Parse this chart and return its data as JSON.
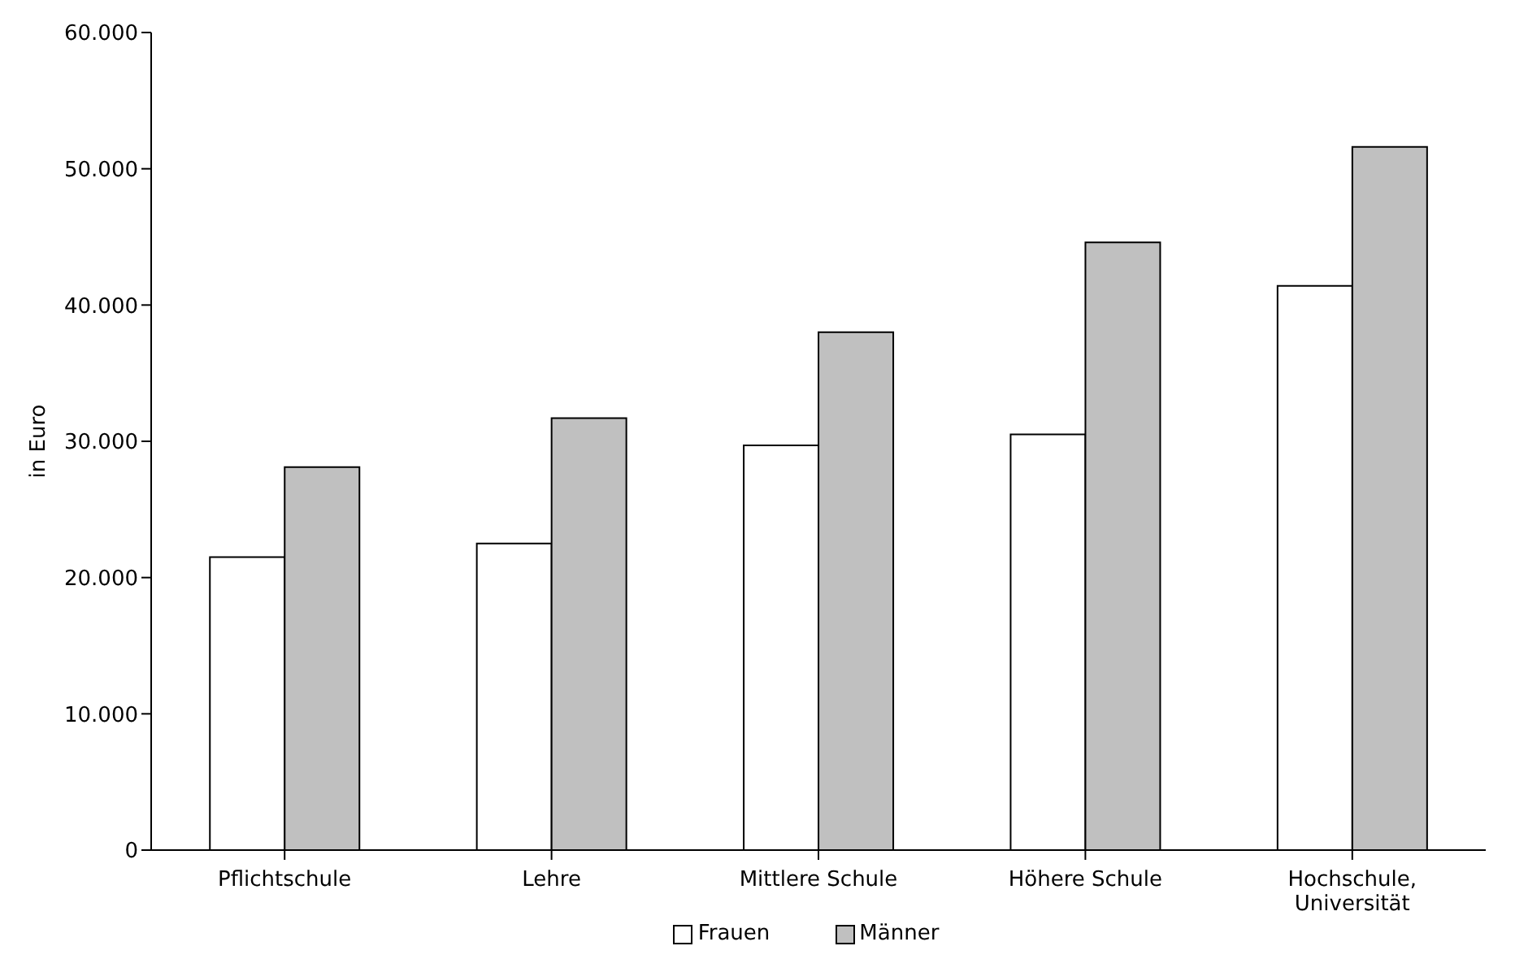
{
  "chart_data": {
    "type": "bar",
    "ylabel": "in Euro",
    "categories": [
      "Pflichtschule",
      "Lehre",
      "Mittlere Schule",
      "Höhere Schule",
      "Hochschule, Universität"
    ],
    "series": [
      {
        "name": "Frauen",
        "color": "#ffffff",
        "values": [
          21500,
          22500,
          29700,
          30500,
          41400
        ]
      },
      {
        "name": "Männer",
        "color": "#c0c0c0",
        "values": [
          28100,
          31700,
          38000,
          44600,
          51600
        ]
      }
    ],
    "ylim": [
      0,
      60000
    ],
    "yticks": [
      {
        "value": 0,
        "label": "0"
      },
      {
        "value": 10000,
        "label": "10.000"
      },
      {
        "value": 20000,
        "label": "20.000"
      },
      {
        "value": 30000,
        "label": "30.000"
      },
      {
        "value": 40000,
        "label": "40.000"
      },
      {
        "value": 50000,
        "label": "50.000"
      },
      {
        "value": 60000,
        "label": "60.000"
      }
    ],
    "grid": false,
    "legend": "bottom"
  }
}
